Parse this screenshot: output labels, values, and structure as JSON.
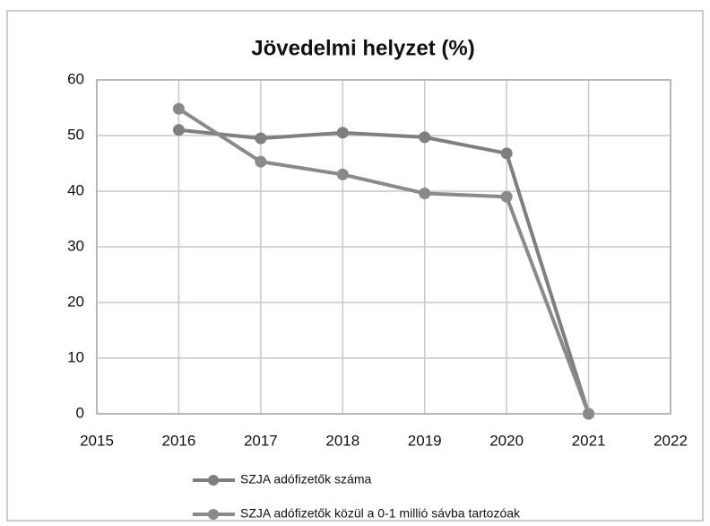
{
  "chart_data": {
    "type": "line",
    "title": "Jövedelmi helyzet (%)",
    "x": [
      2016,
      2017,
      2018,
      2019,
      2020,
      2021
    ],
    "xlim": [
      2015,
      2022
    ],
    "xticks": [
      2015,
      2016,
      2017,
      2018,
      2019,
      2020,
      2021,
      2022
    ],
    "ylim": [
      0,
      60
    ],
    "yticks": [
      0,
      10,
      20,
      30,
      40,
      50,
      60
    ],
    "grid": true,
    "legend": "bottom",
    "series": [
      {
        "name": "SZJA adófizetők száma",
        "color": "#7f7f7f",
        "values": [
          51,
          49.5,
          50.5,
          49.7,
          46.8,
          0
        ]
      },
      {
        "name": "SZJA adófizetők közül a 0-1 millió sávba tartozóak",
        "color": "#8a8a8a",
        "values": [
          54.8,
          45.3,
          43,
          39.6,
          39,
          0
        ]
      }
    ]
  }
}
